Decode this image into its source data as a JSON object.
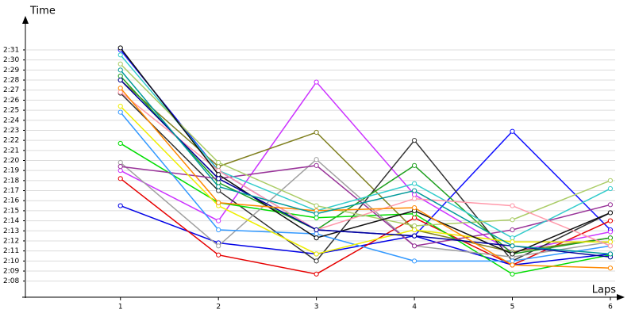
{
  "chart_data": {
    "type": "line",
    "y_label": "Time",
    "x_label": "Laps",
    "x": [
      1,
      2,
      3,
      4,
      5,
      6
    ],
    "xlim": [
      0.03,
      6.13
    ],
    "xticks": [
      1,
      2,
      3,
      4,
      5,
      6
    ],
    "ylim": [
      126.4,
      153.6
    ],
    "yticks": [
      {
        "value": 128,
        "label": "2:08"
      },
      {
        "value": 129,
        "label": "2:09"
      },
      {
        "value": 130,
        "label": "2:10"
      },
      {
        "value": 131,
        "label": "2:11"
      },
      {
        "value": 132,
        "label": "2:12"
      },
      {
        "value": 133,
        "label": "2:13"
      },
      {
        "value": 134,
        "label": "2:14"
      },
      {
        "value": 135,
        "label": "2:15"
      },
      {
        "value": 136,
        "label": "2:16"
      },
      {
        "value": 137,
        "label": "2:17"
      },
      {
        "value": 138,
        "label": "2:18"
      },
      {
        "value": 139,
        "label": "2:19"
      },
      {
        "value": 140,
        "label": "2:20"
      },
      {
        "value": 141,
        "label": "2:21"
      },
      {
        "value": 142,
        "label": "2:22"
      },
      {
        "value": 143,
        "label": "2:23"
      },
      {
        "value": 144,
        "label": "2:24"
      },
      {
        "value": 145,
        "label": "2:25"
      },
      {
        "value": 146,
        "label": "2:26"
      },
      {
        "value": 147,
        "label": "2:27"
      },
      {
        "value": 148,
        "label": "2:28"
      },
      {
        "value": 149,
        "label": "2:29"
      },
      {
        "value": 150,
        "label": "2:30"
      },
      {
        "value": 151,
        "label": "2:31"
      }
    ],
    "grid": true,
    "series": [
      {
        "color": "#0000e6",
        "values": [
          135.5,
          131.8,
          130.7,
          132.5,
          129.6,
          130.7
        ]
      },
      {
        "color": "#1010ff",
        "values": [
          151,
          139,
          133.1,
          132.5,
          142.9,
          133.1
        ]
      },
      {
        "color": "#e60000",
        "values": [
          138.2,
          130.6,
          128.7,
          134.3,
          129.6,
          134
        ]
      },
      {
        "color": "#cc33ff",
        "values": [
          139,
          134,
          147.8,
          136.6,
          130.9,
          132.9
        ]
      },
      {
        "color": "#808020",
        "values": [
          148,
          139.4,
          142.8,
          133.1,
          130.9,
          132.3
        ]
      },
      {
        "color": "#333333",
        "values": [
          146.7,
          137,
          130,
          142,
          130,
          134.8
        ]
      },
      {
        "color": "#20a020",
        "values": [
          148.4,
          137.8,
          133.1,
          139.5,
          130.7,
          132.3
        ]
      },
      {
        "color": "#00dd00",
        "values": [
          141.7,
          135.8,
          134.3,
          134.7,
          128.7,
          130.6
        ]
      },
      {
        "color": "#a0a0a0",
        "values": [
          139.8,
          131.5,
          140.1,
          131.5,
          130.4,
          131.9
        ]
      },
      {
        "color": "#993399",
        "values": [
          139.4,
          138.2,
          139.5,
          131.5,
          133.1,
          135.6
        ]
      },
      {
        "color": "#3399ff",
        "values": [
          144.8,
          133.1,
          132.7,
          130,
          130,
          131.5
        ]
      },
      {
        "color": "#33cccc",
        "values": [
          150.5,
          139,
          135,
          137.7,
          132.3,
          137.2
        ]
      },
      {
        "color": "#eeee00",
        "values": [
          145.4,
          135.5,
          130.7,
          133.1,
          131.9,
          131.9
        ]
      },
      {
        "color": "#aacc66",
        "values": [
          149.6,
          139.8,
          135.5,
          133.5,
          134.1,
          138
        ]
      },
      {
        "color": "#ff99aa",
        "values": [
          146.8,
          139,
          133.1,
          136.2,
          135.5,
          131.5
        ]
      },
      {
        "color": "#111111",
        "values": [
          151.2,
          138.6,
          132.3,
          135,
          130.7,
          134.8
        ]
      },
      {
        "color": "#000099",
        "values": [
          148,
          138.2,
          133.1,
          132.5,
          131.5,
          130.4
        ]
      },
      {
        "color": "#ff8800",
        "values": [
          147.2,
          135.8,
          135,
          135.3,
          129.6,
          129.3
        ]
      },
      {
        "color": "#009999",
        "values": [
          149,
          137.4,
          134.7,
          137,
          131.5,
          130.7
        ]
      }
    ]
  }
}
